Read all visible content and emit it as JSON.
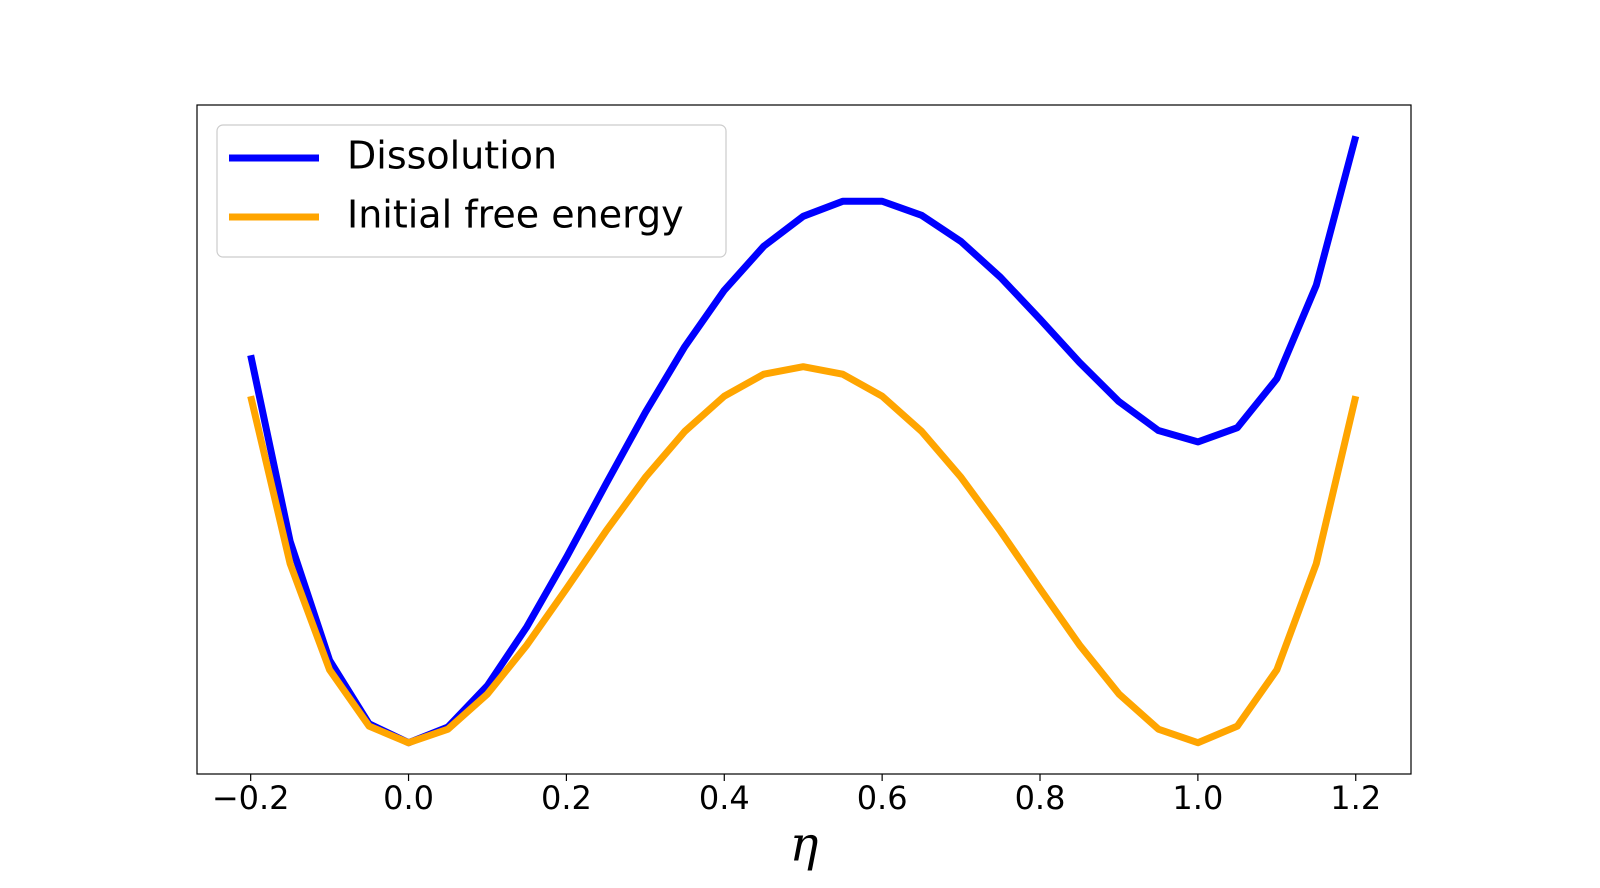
{
  "chart_data": {
    "type": "line",
    "xlabel": "η",
    "x": [
      -0.2,
      -0.15,
      -0.1,
      -0.05,
      0,
      0.05,
      0.1,
      0.15,
      0.2,
      0.25,
      0.3,
      0.35,
      0.4,
      0.45,
      0.5,
      0.55,
      0.6,
      0.65,
      0.7,
      0.75,
      0.8,
      0.85,
      0.9,
      0.95,
      1.0,
      1.05,
      1.1,
      1.15,
      1.2
    ],
    "series": [
      {
        "name": "Dissolution",
        "color": "#0000ff",
        "values": [
          0.0644,
          0.03347,
          0.0137,
          0.003144,
          0,
          0.002619,
          0.0095,
          0.019294,
          0.0308,
          0.042969,
          0.0549,
          0.065844,
          0.0752,
          0.082519,
          0.0875,
          0.089994,
          0.09,
          0.087669,
          0.0833,
          0.077344,
          0.0704,
          0.063219,
          0.0567,
          0.051894,
          0.05,
          0.052369,
          0.0605,
          0.076044,
          0.1008
        ]
      },
      {
        "name": "Initial free energy",
        "color": "#ffa500",
        "values": [
          0.0576,
          0.02976,
          0.0121,
          0.002756,
          0,
          0.002256,
          0.0081,
          0.016256,
          0.0256,
          0.035156,
          0.0441,
          0.051756,
          0.0576,
          0.061256,
          0.0625,
          0.061256,
          0.0576,
          0.051756,
          0.0441,
          0.035156,
          0.0256,
          0.016256,
          0.0081,
          0.002256,
          0,
          0.002756,
          0.0121,
          0.029756,
          0.0576
        ]
      }
    ],
    "xlim": [
      -0.268,
      1.27
    ],
    "ylim": [
      -0.0052,
      0.106
    ],
    "xticks": [
      {
        "value": -0.2,
        "label": "−0.2"
      },
      {
        "value": 0,
        "label": "0.0"
      },
      {
        "value": 0.2,
        "label": "0.2"
      },
      {
        "value": 0.4,
        "label": "0.4"
      },
      {
        "value": 0.6,
        "label": "0.6"
      },
      {
        "value": 0.8,
        "label": "0.8"
      },
      {
        "value": 1.0,
        "label": "1.0"
      },
      {
        "value": 1.2,
        "label": "1.2"
      }
    ],
    "legend": "upper left"
  }
}
